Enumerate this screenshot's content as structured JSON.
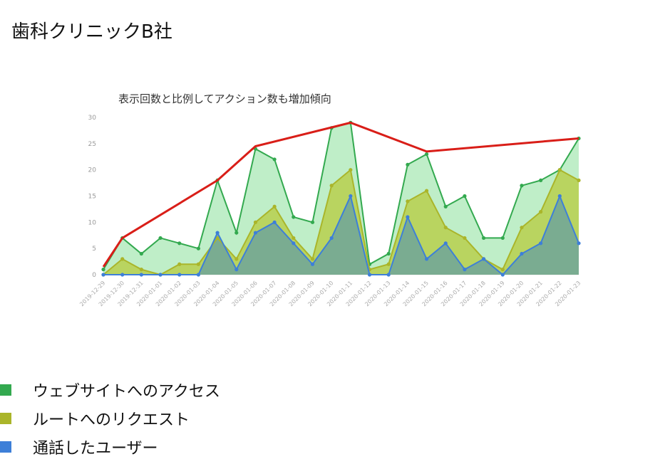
{
  "page": {
    "title": "歯科クリニックB社"
  },
  "chart_data": {
    "type": "area",
    "title": "表示回数と比例してアクション数も増加傾向",
    "ylim": [
      0,
      30
    ],
    "yticks": [
      0,
      5,
      10,
      15,
      20,
      25,
      30
    ],
    "grid": false,
    "legend": "bottom-left",
    "x": [
      "2019-12-29",
      "2019-12-30",
      "2019-12-31",
      "2020-01-01",
      "2020-01-02",
      "2020-01-03",
      "2020-01-04",
      "2020-01-05",
      "2020-01-06",
      "2020-01-07",
      "2020-01-08",
      "2020-01-09",
      "2020-01-10",
      "2020-01-11",
      "2020-01-12",
      "2020-01-13",
      "2020-01-14",
      "2020-01-15",
      "2020-01-16",
      "2020-01-17",
      "2020-01-18",
      "2020-01-19",
      "2020-01-20",
      "2020-01-21",
      "2020-01-22",
      "2020-01-23"
    ],
    "series": [
      {
        "name": "ウェブサイトへのアクセス",
        "color": "#33a94f",
        "fill": "#b8ecc2",
        "values": [
          1,
          7,
          4,
          7,
          6,
          5,
          18,
          8,
          24,
          22,
          11,
          10,
          28,
          29,
          2,
          4,
          21,
          23,
          13,
          15,
          7,
          7,
          17,
          18,
          20,
          26
        ]
      },
      {
        "name": "ルートへのリクエスト",
        "color": "#aab52a",
        "fill": "#b7cf4e",
        "values": [
          0,
          3,
          1,
          0,
          2,
          2,
          7,
          3,
          10,
          13,
          7,
          3,
          17,
          20,
          1,
          2,
          14,
          16,
          9,
          7,
          3,
          1,
          9,
          12,
          20,
          18
        ]
      },
      {
        "name": "通話したユーザー",
        "color": "#3d7fd8",
        "fill": "#6ea59a",
        "values": [
          0,
          0,
          0,
          0,
          0,
          0,
          8,
          1,
          8,
          10,
          6,
          2,
          7,
          15,
          0,
          0,
          11,
          3,
          6,
          1,
          3,
          0,
          4,
          6,
          15,
          6
        ]
      }
    ],
    "annotation": {
      "color": "#d91e18",
      "x_index": [
        0,
        1,
        6,
        8,
        13,
        17,
        25
      ],
      "values": [
        1.5,
        7,
        18,
        24.5,
        29,
        23.5,
        26
      ]
    }
  }
}
